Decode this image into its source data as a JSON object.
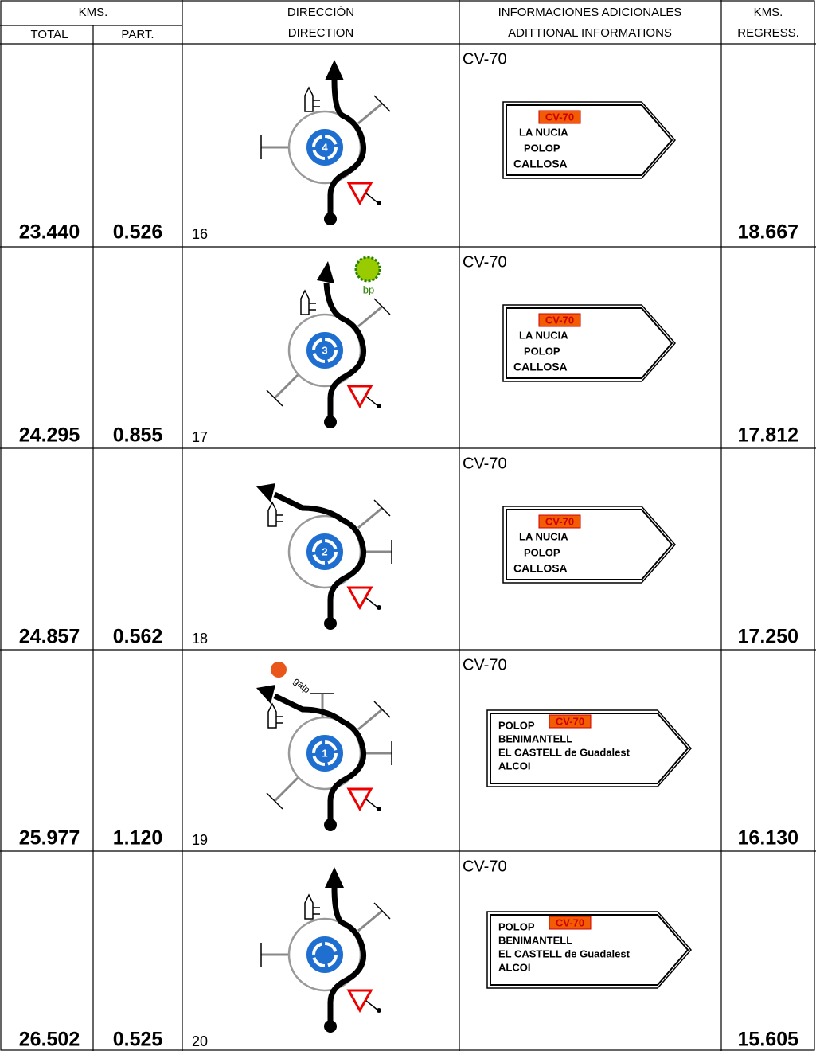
{
  "header": {
    "kms": "KMS.",
    "total": "TOTAL",
    "part": "PART.",
    "direccion": "DIRECCIÓN",
    "direction": "DIRECTION",
    "info_es": "INFORMACIONES ADICIONALES",
    "info_en": "ADITTIONAL INFORMATIONS",
    "kms2": "KMS.",
    "regress": "REGRESS."
  },
  "rows": [
    {
      "total": "23.440",
      "part": "0.526",
      "step": "16",
      "exit": "4",
      "info": "CV-70",
      "sign": {
        "badge": "CV-70",
        "lines": [
          "LA NUCIA",
          "POLOP",
          "CALLOSA"
        ]
      },
      "regress": "18.667"
    },
    {
      "total": "24.295",
      "part": "0.855",
      "step": "17",
      "exit": "3",
      "logo": "bp",
      "info": "CV-70",
      "sign": {
        "badge": "CV-70",
        "lines": [
          "LA NUCIA",
          "POLOP",
          "CALLOSA"
        ]
      },
      "regress": "17.812"
    },
    {
      "total": "24.857",
      "part": "0.562",
      "step": "18",
      "exit": "2",
      "info": "CV-70",
      "sign": {
        "badge": "CV-70",
        "lines": [
          "LA NUCIA",
          "POLOP",
          "CALLOSA"
        ]
      },
      "regress": "17.250"
    },
    {
      "total": "25.977",
      "part": "1.120",
      "step": "19",
      "exit": "1",
      "logo": "galp",
      "info": "CV-70",
      "sign": {
        "badge": "CV-70",
        "lines": [
          "POLOP",
          "BENIMANTELL",
          "EL CASTELL de Guadalest",
          "ALCOI"
        ]
      },
      "regress": "16.130"
    },
    {
      "total": "26.502",
      "part": "0.525",
      "step": "20",
      "info": "CV-70",
      "sign": {
        "badge": "CV-70",
        "lines": [
          "POLOP",
          "BENIMANTELL",
          "EL CASTELL de Guadalest",
          "ALCOI"
        ]
      },
      "regress": "15.605"
    }
  ]
}
